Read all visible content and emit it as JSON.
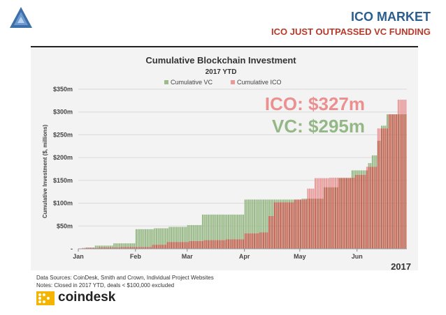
{
  "header": {
    "title": "ICO MARKET",
    "subtitle": "ICO JUST OUTPASSED VC FUNDING"
  },
  "footer": {
    "sources": "Data Sources: CoinDesk, Smith and Crown, Individual Project Websites",
    "notes": "Notes: Closed in 2017 YTD, deals < $100,000 excluded",
    "brand": "coindesk"
  },
  "colors": {
    "header_title": "#2b5e8e",
    "header_subtitle": "#b8392a",
    "vc": "#9bbb8a",
    "ico": "#e89b9b",
    "overlap": "#c06a57",
    "vc_annotation": "#93b886",
    "ico_annotation": "#ec8f8f"
  },
  "chart_data": {
    "type": "bar",
    "title": "Cumulative Blockchain Investment",
    "subtitle": "2017 YTD",
    "ylabel": "Cumulative Investment ($, millions)",
    "xlabel": "",
    "year_label": "2017",
    "ylim": [
      0,
      350
    ],
    "yticks": [
      {
        "value": 0,
        "label": "-"
      },
      {
        "value": 50,
        "label": "$50m"
      },
      {
        "value": 100,
        "label": "$100m"
      },
      {
        "value": 150,
        "label": "$150m"
      },
      {
        "value": 200,
        "label": "$200m"
      },
      {
        "value": 250,
        "label": "$250m"
      },
      {
        "value": 300,
        "label": "$300m"
      },
      {
        "value": 350,
        "label": "$350m"
      }
    ],
    "xticks": [
      {
        "day": 0,
        "label": "Jan"
      },
      {
        "day": 31,
        "label": "Feb"
      },
      {
        "day": 59,
        "label": "Mar"
      },
      {
        "day": 90,
        "label": "Apr"
      },
      {
        "day": 120,
        "label": "May"
      },
      {
        "day": 151,
        "label": "Jun"
      }
    ],
    "grid": true,
    "legend_position": "top-center",
    "annotations": [
      {
        "text": "ICO: $327m",
        "series": "Cumulative ICO"
      },
      {
        "text": "VC: $295m",
        "series": "Cumulative VC"
      }
    ],
    "series": [
      {
        "name": "Cumulative VC",
        "steps": [
          [
            0,
            0
          ],
          [
            4,
            3
          ],
          [
            9,
            7
          ],
          [
            19,
            12
          ],
          [
            31,
            43
          ],
          [
            41,
            45
          ],
          [
            49,
            48
          ],
          [
            59,
            52
          ],
          [
            67,
            75
          ],
          [
            90,
            108
          ],
          [
            108,
            108
          ],
          [
            121,
            110
          ],
          [
            133,
            135
          ],
          [
            141,
            155
          ],
          [
            148,
            172
          ],
          [
            157,
            188
          ],
          [
            159,
            205
          ],
          [
            162,
            237
          ],
          [
            164,
            270
          ],
          [
            167,
            295
          ]
        ]
      },
      {
        "name": "Cumulative ICO",
        "steps": [
          [
            0,
            0
          ],
          [
            2,
            2
          ],
          [
            11,
            3
          ],
          [
            23,
            4
          ],
          [
            40,
            9
          ],
          [
            48,
            15
          ],
          [
            60,
            17
          ],
          [
            68,
            19
          ],
          [
            80,
            21
          ],
          [
            90,
            34
          ],
          [
            98,
            36
          ],
          [
            103,
            72
          ],
          [
            106,
            102
          ],
          [
            117,
            108
          ],
          [
            124,
            132
          ],
          [
            128,
            155
          ],
          [
            136,
            156
          ],
          [
            150,
            162
          ],
          [
            156,
            180
          ],
          [
            162,
            264
          ],
          [
            168,
            295
          ],
          [
            173,
            327
          ]
        ]
      }
    ],
    "x_domain": [
      0,
      178
    ]
  }
}
